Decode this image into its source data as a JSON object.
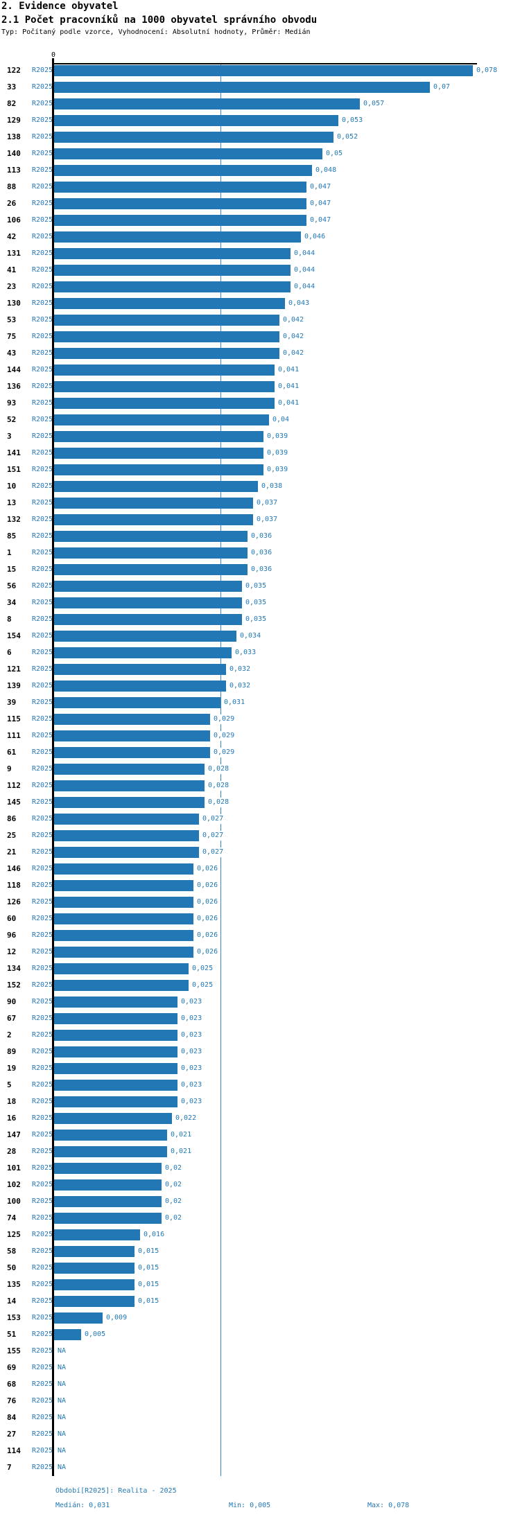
{
  "page": {
    "title": "2. Evidence obyvatel",
    "subtitle": "2.1 Počet pracovníků na 1000 obyvatel správního obvodu",
    "meta": "Typ: Počítaný podle vzorce, Vyhodnocení: Absolutní hodnoty, Průměr: Medián"
  },
  "chart": {
    "zero_tick": "0",
    "series_name": "R2025",
    "na_label": "NA",
    "bar_color": "#2278b5",
    "median_line_color": "#3487c2"
  },
  "footer": {
    "period": "Období[R2025]: Realita - 2025",
    "median": "Medián: 0,031",
    "min": "Min: 0,005",
    "max": "Max: 0,078"
  },
  "chart_data": {
    "type": "bar",
    "orientation": "horizontal",
    "title": "2.1 Počet pracovníků na 1000 obyvatel správního obvodu",
    "series_name": "R2025",
    "xlim": [
      0,
      0.079
    ],
    "median": 0.031,
    "min": 0.005,
    "max": 0.078,
    "value_format": "decimal-comma",
    "na_text": "NA",
    "categories": [
      "122",
      "33",
      "82",
      "129",
      "138",
      "140",
      "113",
      "88",
      "26",
      "106",
      "42",
      "131",
      "41",
      "23",
      "130",
      "53",
      "75",
      "43",
      "144",
      "136",
      "93",
      "52",
      "3",
      "141",
      "151",
      "10",
      "13",
      "132",
      "85",
      "1",
      "15",
      "56",
      "34",
      "8",
      "154",
      "6",
      "121",
      "139",
      "39",
      "115",
      "111",
      "61",
      "9",
      "112",
      "145",
      "86",
      "25",
      "21",
      "146",
      "118",
      "126",
      "60",
      "96",
      "12",
      "134",
      "152",
      "90",
      "67",
      "2",
      "89",
      "19",
      "5",
      "18",
      "16",
      "147",
      "28",
      "101",
      "102",
      "100",
      "74",
      "125",
      "58",
      "50",
      "135",
      "14",
      "153",
      "51",
      "155",
      "69",
      "68",
      "76",
      "84",
      "27",
      "114",
      "7"
    ],
    "values": [
      0.078,
      0.07,
      0.057,
      0.053,
      0.052,
      0.05,
      0.048,
      0.047,
      0.047,
      0.047,
      0.046,
      0.044,
      0.044,
      0.044,
      0.043,
      0.042,
      0.042,
      0.042,
      0.041,
      0.041,
      0.041,
      0.04,
      0.039,
      0.039,
      0.039,
      0.038,
      0.037,
      0.037,
      0.036,
      0.036,
      0.036,
      0.035,
      0.035,
      0.035,
      0.034,
      0.033,
      0.032,
      0.032,
      0.031,
      0.029,
      0.029,
      0.029,
      0.028,
      0.028,
      0.028,
      0.027,
      0.027,
      0.027,
      0.026,
      0.026,
      0.026,
      0.026,
      0.026,
      0.026,
      0.025,
      0.025,
      0.023,
      0.023,
      0.023,
      0.023,
      0.023,
      0.023,
      0.023,
      0.022,
      0.021,
      0.021,
      0.02,
      0.02,
      0.02,
      0.02,
      0.016,
      0.015,
      0.015,
      0.015,
      0.015,
      0.009,
      0.005,
      null,
      null,
      null,
      null,
      null,
      null,
      null,
      null
    ]
  }
}
